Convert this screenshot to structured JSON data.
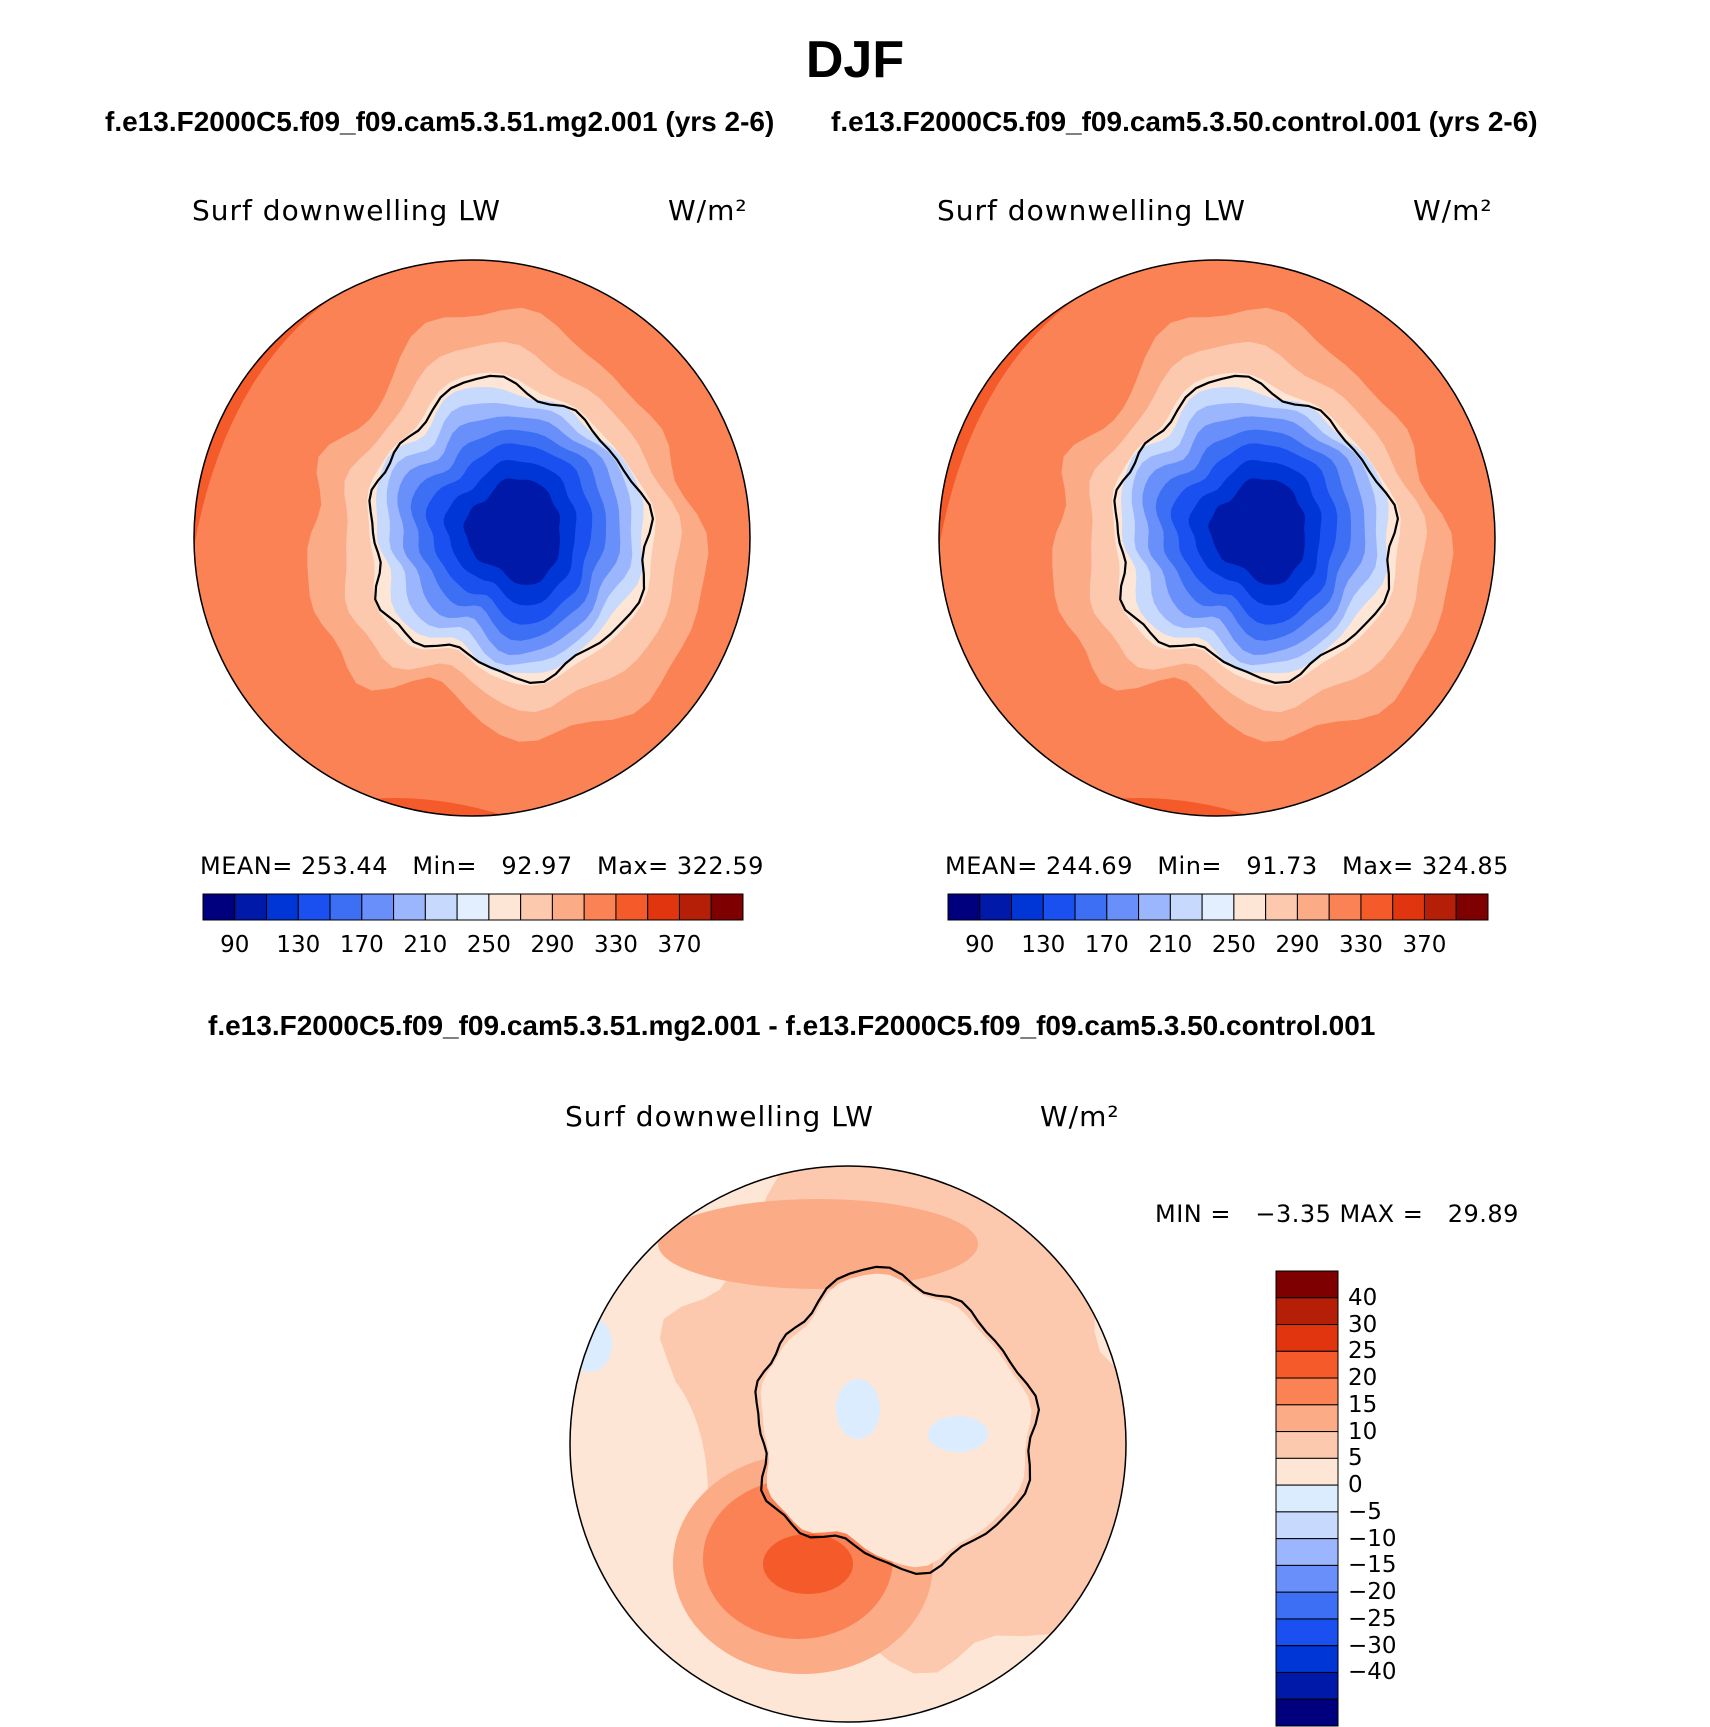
{
  "figure": {
    "title": "DJF",
    "subtitle_left": "f.e13.F2000C5.f09_f09.cam5.3.51.mg2.001 (yrs 2-6)",
    "subtitle_right": "f.e13.F2000C5.f09_f09.cam5.3.50.control.001 (yrs 2-6)",
    "diff_title": "f.e13.F2000C5.f09_f09.cam5.3.51.mg2.001 - f.e13.F2000C5.f09_f09.cam5.3.50.control.001"
  },
  "panels": [
    {
      "variable": "Surf downwelling LW",
      "units": "W/m²",
      "stats": "MEAN= 253.44   Min=   92.97   Max= 322.59"
    },
    {
      "variable": "Surf downwelling LW",
      "units": "W/m²",
      "stats": "MEAN= 244.69   Min=   91.73   Max= 324.85"
    },
    {
      "variable": "Surf downwelling LW",
      "units": "W/m²",
      "stats": "MIN =   −3.35 MAX =   29.89"
    }
  ],
  "colorbar_abs": {
    "colors": [
      "#00007f",
      "#0019a8",
      "#0035d6",
      "#1a4ff0",
      "#3d6ff5",
      "#6990fa",
      "#9bb6fc",
      "#c7d9fd",
      "#e3efff",
      "#fde6d6",
      "#fcc8ae",
      "#fbab86",
      "#fa8255",
      "#f55a2a",
      "#e0350f",
      "#b51f08",
      "#7f0000"
    ],
    "tick_labels": [
      "90",
      "130",
      "170",
      "210",
      "250",
      "290",
      "330",
      "370"
    ]
  },
  "colorbar_diff": {
    "colors": [
      "#00007f",
      "#0019a8",
      "#0035d6",
      "#1a4ff0",
      "#3d6ff5",
      "#6990fa",
      "#9bb6fc",
      "#c7d9fd",
      "#dcecff",
      "#fde6d6",
      "#fcc8ae",
      "#fbab86",
      "#fa8255",
      "#f55a2a",
      "#e0350f",
      "#b51f08",
      "#7f0000"
    ],
    "tick_labels": [
      "−40",
      "−30",
      "−25",
      "−20",
      "−15",
      "−10",
      "−5",
      "0",
      "5",
      "10",
      "15",
      "20",
      "25",
      "30",
      "40"
    ]
  },
  "map_colors": {
    "ocean_far": "#fa8255",
    "ocean_edge": "#f55a2a",
    "ocean_mid": "#fbab86",
    "ocean_near": "#fcc8ae",
    "coast_ring": "#fde6d6",
    "ice_1": "#c7d9fd",
    "ice_2": "#9bb6fc",
    "ice_3": "#6990fa",
    "ice_4": "#3d6ff5",
    "ice_5": "#1a4ff0",
    "ice_6": "#0035d6",
    "ice_core": "#0019a8",
    "diff_bg": "#fde6d6",
    "diff_warm1": "#fcc8ae",
    "diff_warm2": "#fbab86",
    "diff_warm3": "#fa8255",
    "diff_warm4": "#f55a2a",
    "diff_cold": "#dcecff"
  }
}
